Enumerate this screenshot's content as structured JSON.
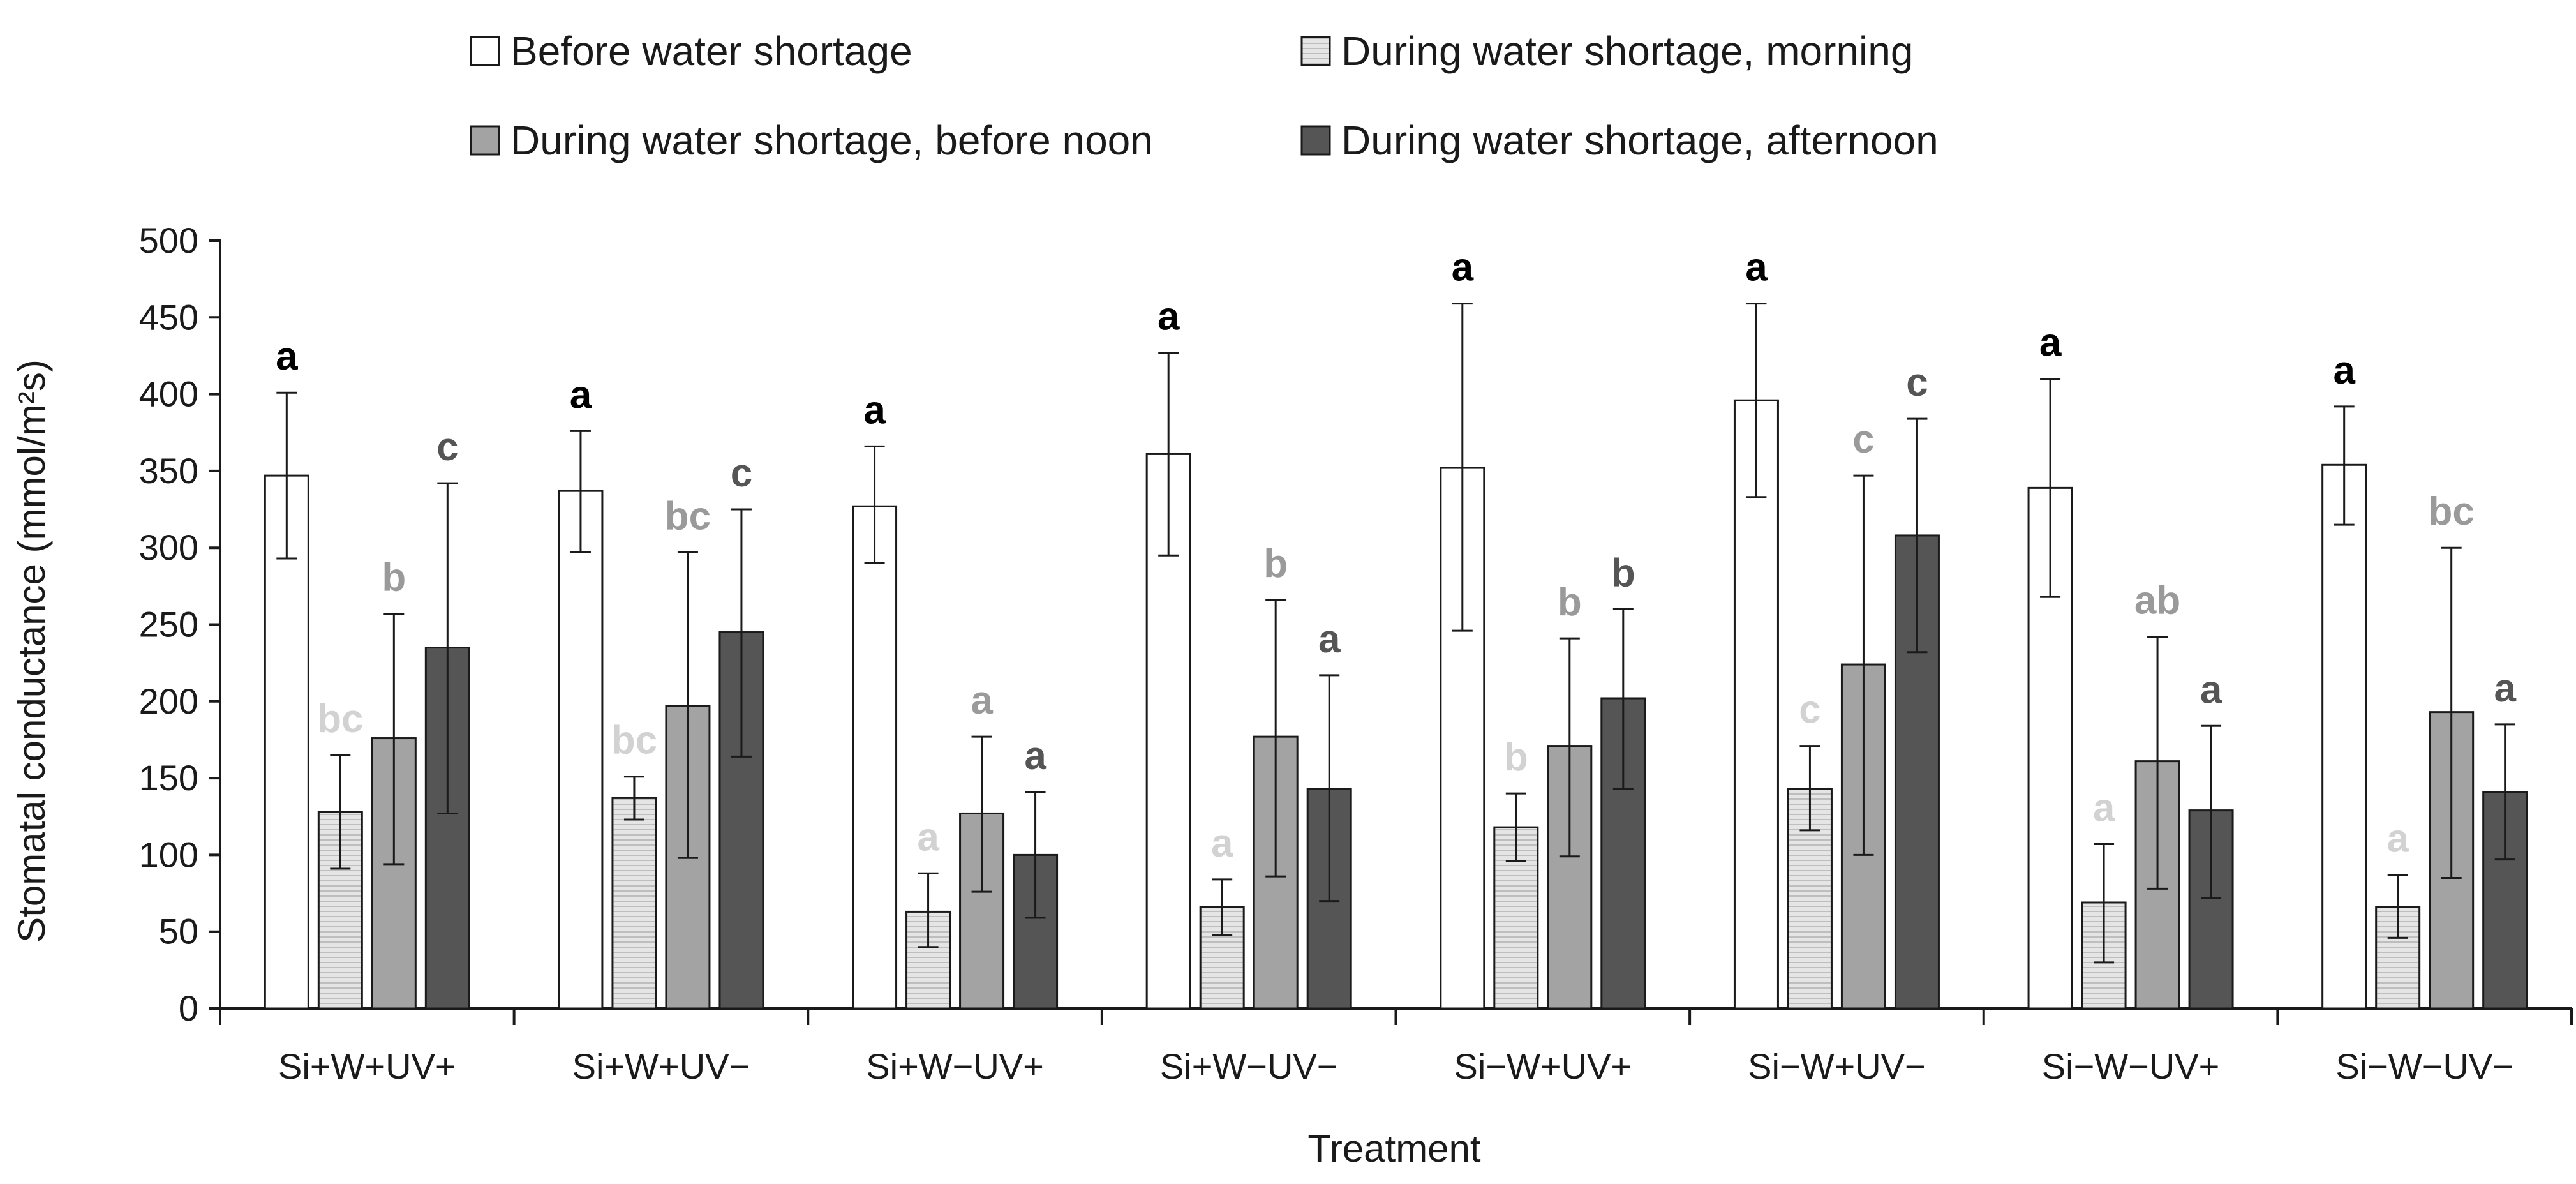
{
  "chart_data": {
    "type": "bar",
    "xlabel": "Treatment",
    "ylabel": "Stomatal conductance (mmol/m²s)",
    "ylim": [
      0,
      500
    ],
    "yticks": [
      "0",
      "50",
      "100",
      "150",
      "200",
      "250",
      "300",
      "350",
      "400",
      "450",
      "500"
    ],
    "ytick_values": [
      0,
      50,
      100,
      150,
      200,
      250,
      300,
      350,
      400,
      450,
      500
    ],
    "grid": false,
    "legend_position": "top",
    "categories": [
      "Si+W+UV+",
      "Si+W+UV−",
      "Si+W−UV+",
      "Si+W−UV−",
      "Si−W+UV+",
      "Si−W+UV−",
      "Si−W−UV+",
      "Si−W−UV−"
    ],
    "series": [
      {
        "name": "Before water shortage",
        "fill": "#ffffff",
        "label_color": "#000000",
        "values": [
          347,
          337,
          327,
          361,
          352,
          396,
          339,
          354
        ],
        "err_low": [
          293,
          297,
          290,
          295,
          246,
          333,
          268,
          315
        ],
        "err_high": [
          401,
          376,
          366,
          427,
          459,
          459,
          410,
          392
        ],
        "letters": [
          "a",
          "a",
          "a",
          "a",
          "a",
          "a",
          "a",
          "a"
        ]
      },
      {
        "name": "During water shortage, morning",
        "fill": "#e5e5e5",
        "label_color": "#d2d2d2",
        "hatched": true,
        "values": [
          128,
          137,
          63,
          66,
          118,
          143,
          69,
          66
        ],
        "err_low": [
          91,
          123,
          40,
          48,
          96,
          116,
          30,
          46
        ],
        "err_high": [
          165,
          151,
          88,
          84,
          140,
          171,
          107,
          87
        ],
        "letters": [
          "bc",
          "bc",
          "a",
          "a",
          "b",
          "c",
          "a",
          "a"
        ]
      },
      {
        "name": "During water shortage, before noon",
        "fill": "#a3a3a3",
        "label_color": "#9a9a9a",
        "values": [
          176,
          197,
          127,
          177,
          171,
          224,
          161,
          193
        ],
        "err_low": [
          94,
          98,
          76,
          86,
          99,
          100,
          78,
          85
        ],
        "err_high": [
          257,
          297,
          177,
          266,
          241,
          347,
          242,
          300
        ],
        "letters": [
          "b",
          "bc",
          "a",
          "b",
          "b",
          "c",
          "ab",
          "bc"
        ]
      },
      {
        "name": "During water shortage, afternoon",
        "fill": "#555555",
        "label_color": "#555555",
        "values": [
          235,
          245,
          100,
          143,
          202,
          308,
          129,
          141
        ],
        "err_low": [
          127,
          164,
          59,
          70,
          143,
          232,
          72,
          97
        ],
        "err_high": [
          342,
          325,
          141,
          217,
          260,
          384,
          184,
          185
        ],
        "letters": [
          "c",
          "c",
          "a",
          "a",
          "b",
          "c",
          "a",
          "a"
        ]
      }
    ]
  }
}
